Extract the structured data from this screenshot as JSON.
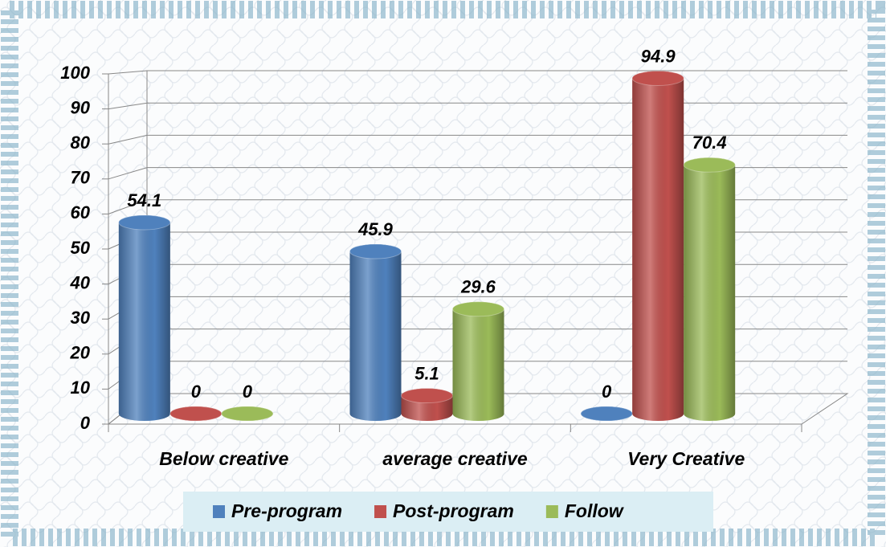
{
  "chart_data": {
    "type": "bar3d",
    "categories": [
      "Below creative",
      "average creative",
      "Very Creative"
    ],
    "series": [
      {
        "name": "Pre-program",
        "color": "#4f81bd",
        "values": [
          54.1,
          45.9,
          0
        ]
      },
      {
        "name": "Post-program",
        "color": "#c0504d",
        "values": [
          0,
          5.1,
          94.9
        ]
      },
      {
        "name": "Follow",
        "color": "#9bbb59",
        "values": [
          0,
          29.6,
          70.4
        ]
      }
    ],
    "ylim": [
      0,
      100
    ],
    "yticks": [
      0,
      10,
      20,
      30,
      40,
      50,
      60,
      70,
      80,
      90,
      100
    ],
    "grid": true,
    "legend": "bottom"
  }
}
